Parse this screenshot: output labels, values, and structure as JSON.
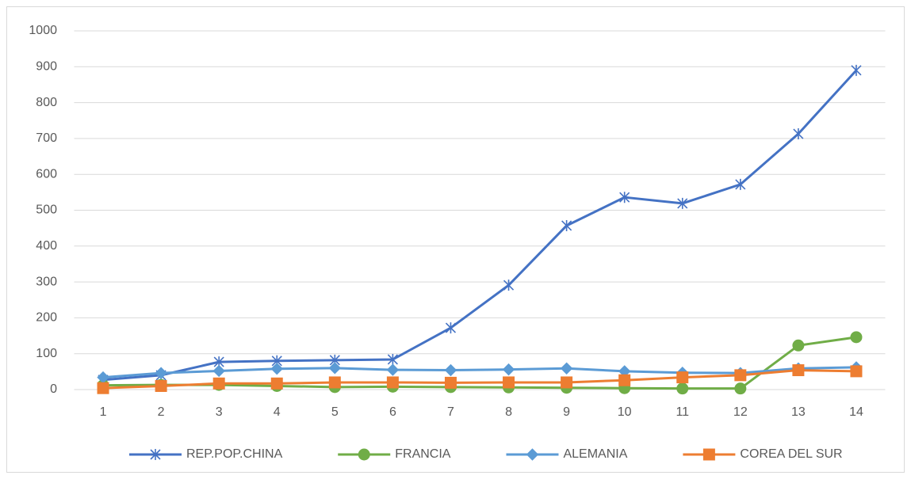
{
  "chart_data": {
    "type": "line",
    "categories": [
      1,
      2,
      3,
      4,
      5,
      6,
      7,
      8,
      9,
      10,
      11,
      12,
      13,
      14
    ],
    "ylim": [
      0,
      1000
    ],
    "yticks": [
      0,
      100,
      200,
      300,
      400,
      500,
      600,
      700,
      800,
      900,
      1000
    ],
    "grid": true,
    "legend": "bottom",
    "series": [
      {
        "name": "REP.POP.CHINA",
        "color": "#4472c4",
        "marker": "asterisk",
        "values": [
          27,
          40,
          77,
          80,
          82,
          84,
          172,
          291,
          457,
          536,
          519,
          572,
          713,
          890
        ]
      },
      {
        "name": "FRANCIA",
        "color": "#70ad47",
        "marker": "circle",
        "values": [
          12,
          13,
          13,
          10,
          7,
          8,
          7,
          6,
          5,
          4,
          3,
          3,
          123,
          146
        ]
      },
      {
        "name": "ALEMANIA",
        "color": "#5b9bd5",
        "marker": "diamond",
        "values": [
          34,
          46,
          52,
          58,
          60,
          55,
          54,
          56,
          59,
          51,
          47,
          46,
          59,
          62
        ]
      },
      {
        "name": "COREA DEL SUR",
        "color": "#ed7d31",
        "marker": "square",
        "values": [
          4,
          10,
          17,
          17,
          20,
          20,
          19,
          20,
          20,
          26,
          34,
          40,
          54,
          51
        ]
      }
    ]
  }
}
